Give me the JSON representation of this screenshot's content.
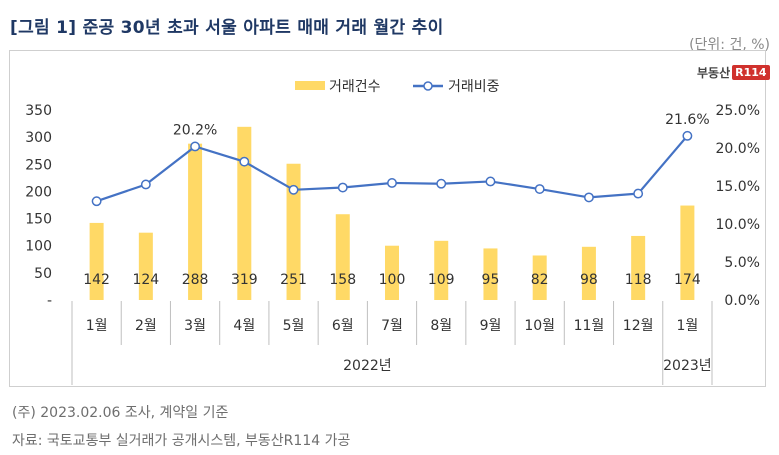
{
  "title": "[그림 1] 준공 30년 초과 서울 아파트 매매 거래 월간 추이",
  "unit": "(단위: 건, %)",
  "logo": {
    "text": "부동산",
    "badge": "R114"
  },
  "notes": {
    "date_note": "(주) 2023.02.06 조사, 계약일 기준",
    "source_note": "자료: 국토교통부 실거래가 공개시스템, 부동산R114 가공"
  },
  "colors": {
    "bar": "#ffd966",
    "line": "#4472c4",
    "title": "#1f3864"
  },
  "chart_data": {
    "type": "bar+line",
    "categories": [
      "1월",
      "2월",
      "3월",
      "4월",
      "5월",
      "6월",
      "7월",
      "8월",
      "9월",
      "10월",
      "11월",
      "12월",
      "1월"
    ],
    "year_groups": [
      {
        "label": "2022년",
        "count": 12
      },
      {
        "label": "2023년",
        "count": 1
      }
    ],
    "series": [
      {
        "name": "거래건수",
        "type": "bar",
        "axis": "left",
        "values": [
          142,
          124,
          288,
          319,
          251,
          158,
          100,
          109,
          95,
          82,
          98,
          118,
          174
        ]
      },
      {
        "name": "거래비중",
        "type": "line",
        "axis": "right",
        "values": [
          13.0,
          15.2,
          20.2,
          18.2,
          14.5,
          14.8,
          15.4,
          15.3,
          15.6,
          14.6,
          13.5,
          14.0,
          21.6
        ]
      }
    ],
    "left_axis": {
      "min": 0,
      "max": 350,
      "ticks": [
        "-",
        "50",
        "100",
        "150",
        "200",
        "250",
        "300",
        "350"
      ]
    },
    "right_axis": {
      "min": 0,
      "max": 25,
      "ticks": [
        "0.0%",
        "5.0%",
        "10.0%",
        "15.0%",
        "20.0%",
        "25.0%"
      ]
    },
    "line_labels": [
      {
        "index": 2,
        "text": "20.2%"
      },
      {
        "index": 12,
        "text": "21.6%"
      }
    ]
  }
}
